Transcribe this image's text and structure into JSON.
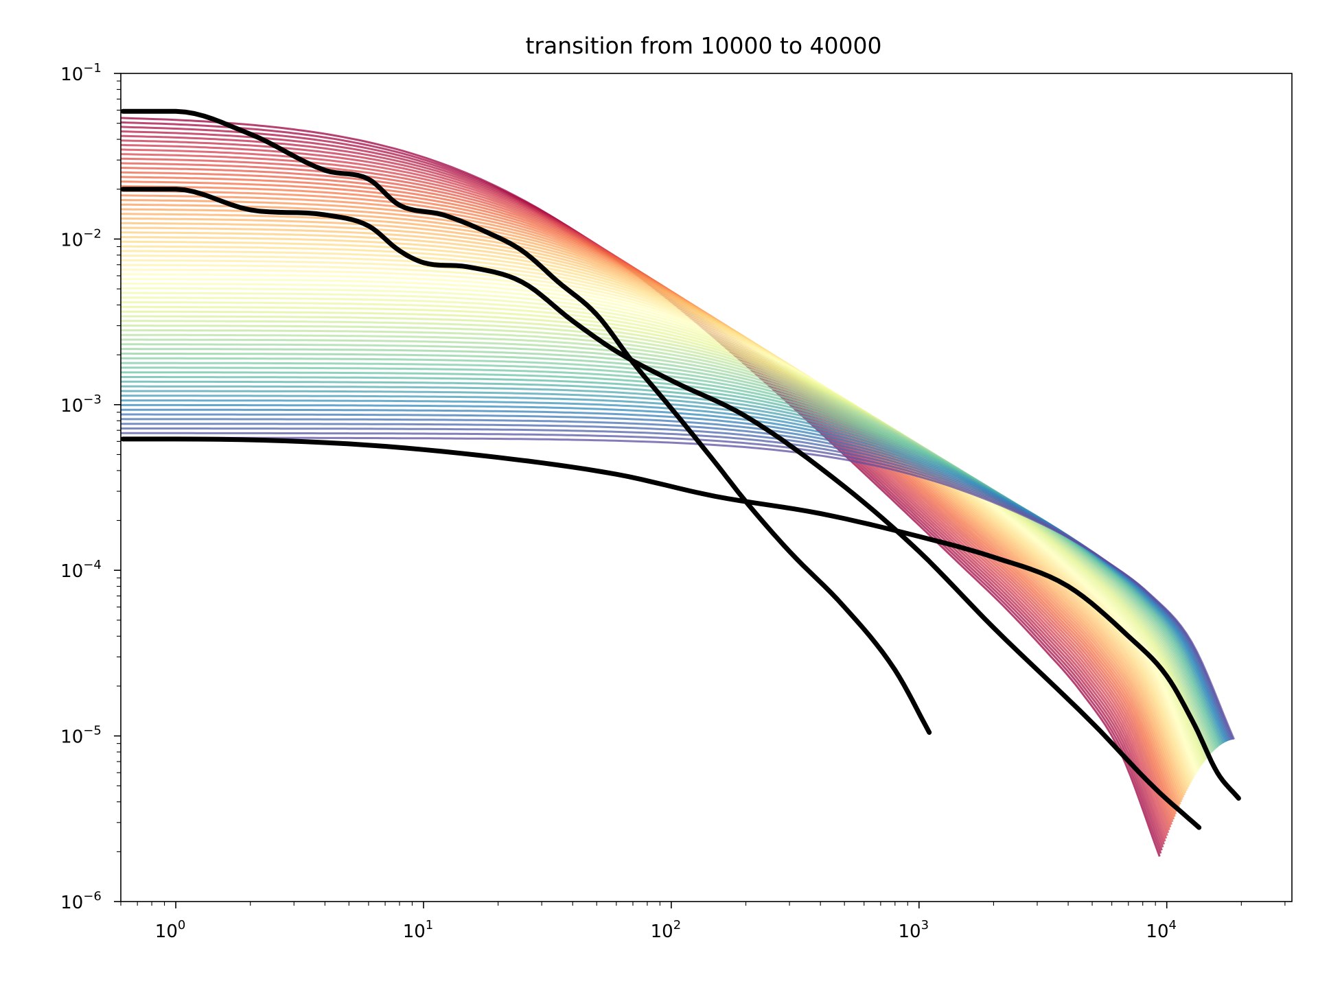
{
  "chart_data": {
    "type": "line",
    "title": "transition from 10000 to 40000",
    "xlabel": "",
    "ylabel": "",
    "xscale": "log",
    "yscale": "log",
    "xlim": [
      0.6,
      32000
    ],
    "ylim": [
      1e-06,
      0.1
    ],
    "grid": false,
    "legend": "none",
    "x_ticks": [
      {
        "value": 1,
        "base": "10",
        "exp": "0"
      },
      {
        "value": 10,
        "base": "10",
        "exp": "1"
      },
      {
        "value": 100,
        "base": "10",
        "exp": "2"
      },
      {
        "value": 1000,
        "base": "10",
        "exp": "3"
      },
      {
        "value": 10000,
        "base": "10",
        "exp": "4"
      }
    ],
    "y_ticks": [
      {
        "value": 0.1,
        "base": "10",
        "exp": "−1"
      },
      {
        "value": 0.01,
        "base": "10",
        "exp": "−2"
      },
      {
        "value": 0.001,
        "base": "10",
        "exp": "−3"
      },
      {
        "value": 0.0001,
        "base": "10",
        "exp": "−4"
      },
      {
        "value": 1e-05,
        "base": "10",
        "exp": "−5"
      },
      {
        "value": 1e-06,
        "base": "10",
        "exp": "−6"
      }
    ],
    "colormap": [
      "#9e0142",
      "#d53e4f",
      "#f46d43",
      "#fdae61",
      "#fee08b",
      "#ffffbf",
      "#e6f598",
      "#abdda4",
      "#66c2a5",
      "#3288bd",
      "#5e4fa2"
    ],
    "highlight_color": "#000000",
    "family_count": 70,
    "series": [
      {
        "values": [
          [
            1,
            0.059
          ],
          [
            2,
            0.043
          ],
          [
            4,
            0.026
          ],
          [
            6,
            0.023
          ],
          [
            8,
            0.016
          ],
          [
            12,
            0.014
          ],
          [
            18,
            0.011
          ],
          [
            25,
            0.0085
          ],
          [
            35,
            0.0055
          ],
          [
            50,
            0.0035
          ],
          [
            70,
            0.0018
          ],
          [
            100,
            0.00095
          ],
          [
            150,
            0.00045
          ],
          [
            200,
            0.00026
          ],
          [
            300,
            0.00013
          ],
          [
            500,
            6e-05
          ],
          [
            800,
            2.5e-05
          ],
          [
            1100,
            1.05e-05
          ]
        ]
      },
      {
        "values": [
          [
            1,
            0.02
          ],
          [
            2,
            0.015
          ],
          [
            4,
            0.014
          ],
          [
            6,
            0.012
          ],
          [
            8,
            0.0085
          ],
          [
            10,
            0.0072
          ],
          [
            15,
            0.0068
          ],
          [
            25,
            0.0055
          ],
          [
            40,
            0.0032
          ],
          [
            60,
            0.0021
          ],
          [
            100,
            0.0014
          ],
          [
            200,
            0.00085
          ],
          [
            500,
            0.00032
          ],
          [
            1000,
            0.00013
          ],
          [
            2000,
            4.5e-05
          ],
          [
            5000,
            1.2e-05
          ],
          [
            9000,
            4.8e-06
          ],
          [
            13500,
            2.8e-06
          ]
        ]
      },
      {
        "values": [
          [
            1,
            0.00062
          ],
          [
            5,
            0.00058
          ],
          [
            20,
            0.00048
          ],
          [
            60,
            0.00038
          ],
          [
            150,
            0.00028
          ],
          [
            400,
            0.00022
          ],
          [
            1000,
            0.00016
          ],
          [
            2000,
            0.00012
          ],
          [
            4000,
            8e-05
          ],
          [
            7000,
            4e-05
          ],
          [
            10000,
            2.3e-05
          ],
          [
            13000,
            1.15e-05
          ],
          [
            16000,
            6e-06
          ],
          [
            19500,
            4.2e-06
          ]
        ]
      }
    ]
  }
}
